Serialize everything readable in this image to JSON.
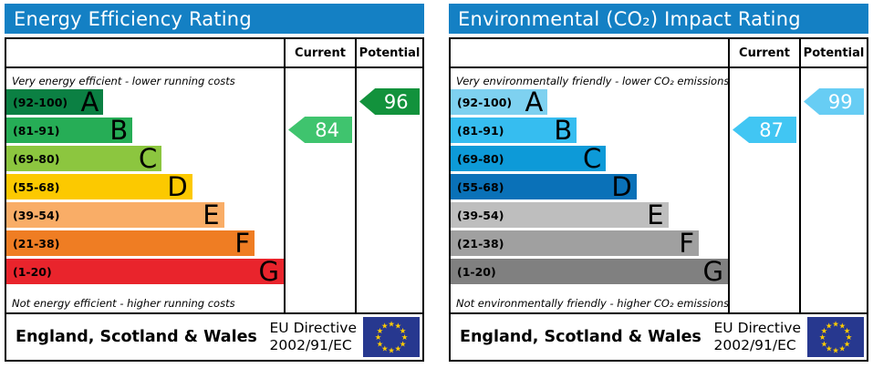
{
  "eu_flag": {
    "bg": "#27388f",
    "star_color": "#ffcc00",
    "star_glyph": "★"
  },
  "panels": [
    {
      "title": "Energy Efficiency Rating",
      "columns": {
        "current": "Current",
        "potential": "Potential"
      },
      "top_note": "Very energy efficient - lower running costs",
      "bottom_note": "Not energy efficient - higher running costs",
      "bands": [
        {
          "range": "(92-100)",
          "letter": "A",
          "color": "#0b8043",
          "width": "35%"
        },
        {
          "range": "(81-91)",
          "letter": "B",
          "color": "#26ad56",
          "width": "45.5%"
        },
        {
          "range": "(69-80)",
          "letter": "C",
          "color": "#8cc63f",
          "width": "56%"
        },
        {
          "range": "(55-68)",
          "letter": "D",
          "color": "#fcc900",
          "width": "67%"
        },
        {
          "range": "(39-54)",
          "letter": "E",
          "color": "#f9ad67",
          "width": "78.5%"
        },
        {
          "range": "(21-38)",
          "letter": "F",
          "color": "#ef7d23",
          "width": "89.5%"
        },
        {
          "range": "(1-20)",
          "letter": "G",
          "color": "#e9242c",
          "width": "100%"
        }
      ],
      "current": {
        "value": "84",
        "band_row": 1,
        "color": "#3fc46e"
      },
      "potential": {
        "value": "96",
        "band_row": 0,
        "color": "#12923c"
      },
      "footer": {
        "region": "England, Scotland & Wales",
        "directive_line1": "EU Directive",
        "directive_line2": "2002/91/EC"
      }
    },
    {
      "title": "Environmental (CO₂) Impact Rating",
      "columns": {
        "current": "Current",
        "potential": "Potential"
      },
      "top_note": "Very environmentally friendly - lower CO₂ emissions",
      "bottom_note": "Not environmentally friendly - higher CO₂ emissions",
      "bands": [
        {
          "range": "(92-100)",
          "letter": "A",
          "color": "#7ed1f0",
          "width": "35%"
        },
        {
          "range": "(81-91)",
          "letter": "B",
          "color": "#36bdf0",
          "width": "45.5%"
        },
        {
          "range": "(69-80)",
          "letter": "C",
          "color": "#0d9ad8",
          "width": "56%"
        },
        {
          "range": "(55-68)",
          "letter": "D",
          "color": "#0a71b8",
          "width": "67%"
        },
        {
          "range": "(39-54)",
          "letter": "E",
          "color": "#bebebe",
          "width": "78.5%"
        },
        {
          "range": "(21-38)",
          "letter": "F",
          "color": "#a0a0a0",
          "width": "89.5%"
        },
        {
          "range": "(1-20)",
          "letter": "G",
          "color": "#808080",
          "width": "100%"
        }
      ],
      "current": {
        "value": "87",
        "band_row": 1,
        "color": "#41c6f3"
      },
      "potential": {
        "value": "99",
        "band_row": 0,
        "color": "#67cdf4"
      },
      "footer": {
        "region": "England, Scotland & Wales",
        "directive_line1": "EU Directive",
        "directive_line2": "2002/91/EC"
      }
    }
  ],
  "chart_data": [
    {
      "type": "bar",
      "title": "Energy Efficiency Rating",
      "categories": [
        "A (92-100)",
        "B (81-91)",
        "C (69-80)",
        "D (55-68)",
        "E (39-54)",
        "F (21-38)",
        "G (1-20)"
      ],
      "values": [
        35,
        45.5,
        56,
        67,
        78.5,
        89.5,
        100
      ],
      "ylabel": "bar length as % of scale width (schematic EPC bands)",
      "current_rating": 84,
      "current_band": "B",
      "potential_rating": 96,
      "potential_band": "A",
      "top_label": "Very energy efficient - lower running costs",
      "bottom_label": "Not energy efficient - higher running costs",
      "footer": "England, Scotland & Wales — EU Directive 2002/91/EC"
    },
    {
      "type": "bar",
      "title": "Environmental (CO₂) Impact Rating",
      "categories": [
        "A (92-100)",
        "B (81-91)",
        "C (69-80)",
        "D (55-68)",
        "E (39-54)",
        "F (21-38)",
        "G (1-20)"
      ],
      "values": [
        35,
        45.5,
        56,
        67,
        78.5,
        89.5,
        100
      ],
      "ylabel": "bar length as % of scale width (schematic EPC bands)",
      "current_rating": 87,
      "current_band": "B",
      "potential_rating": 99,
      "potential_band": "A",
      "top_label": "Very environmentally friendly - lower CO₂ emissions",
      "bottom_label": "Not environmentally friendly - higher CO₂ emissions",
      "footer": "England, Scotland & Wales — EU Directive 2002/91/EC"
    }
  ]
}
